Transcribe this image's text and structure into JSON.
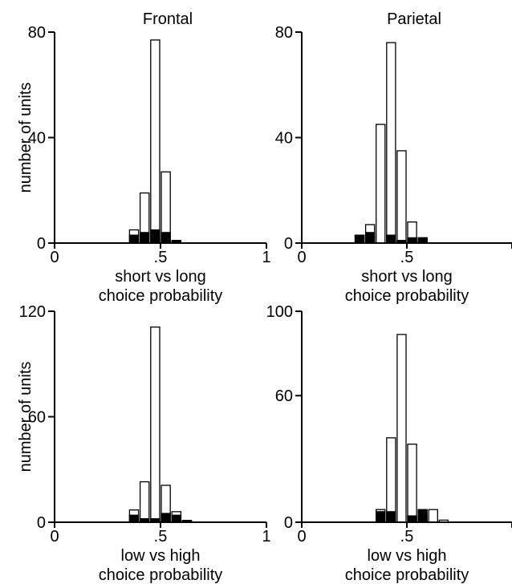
{
  "figure": {
    "panels": [
      {
        "title": "Frontal",
        "ylabel": "number of units",
        "xlabel_line1": "short vs long",
        "xlabel_line2": "choice probability",
        "yticks": [
          "0",
          "40",
          "80"
        ],
        "xticks": [
          "0",
          ".5",
          "1"
        ]
      },
      {
        "title": "Parietal",
        "ylabel": "",
        "xlabel_line1": "short vs long",
        "xlabel_line2": "choice probability",
        "yticks": [
          "0",
          "40",
          "80"
        ],
        "xticks": [
          "0",
          ".5",
          ""
        ]
      },
      {
        "title": "",
        "ylabel": "number of units",
        "xlabel_line1": "low vs high",
        "xlabel_line2": "choice probability",
        "yticks": [
          "0",
          "60",
          "120"
        ],
        "xticks": [
          "0",
          ".5",
          "1"
        ]
      },
      {
        "title": "",
        "ylabel": "",
        "xlabel_line1": "low vs high",
        "xlabel_line2": "choice probability",
        "yticks": [
          "0",
          "60",
          "100"
        ],
        "xticks": [
          "0",
          ".5",
          ""
        ]
      }
    ]
  },
  "chart_data": [
    {
      "type": "bar",
      "title": "Frontal",
      "xlabel": "short vs long choice probability",
      "ylabel": "number of units",
      "xlim": [
        0,
        1
      ],
      "ylim": [
        0,
        80
      ],
      "bin_width": 0.05,
      "series": [
        {
          "name": "",
          "color": "#ffffff",
          "bins": [
            0.35,
            0.4,
            0.45,
            0.5,
            0.55,
            0.6
          ],
          "values": [
            5,
            19,
            77,
            27,
            1,
            0
          ]
        },
        {
          "name": "",
          "color": "#000000",
          "bins": [
            0.35,
            0.4,
            0.45,
            0.5,
            0.55,
            0.6
          ],
          "values": [
            3,
            4,
            5,
            4,
            1,
            0
          ]
        }
      ]
    },
    {
      "type": "bar",
      "title": "Parietal",
      "xlabel": "short vs long choice probability",
      "ylabel": "",
      "xlim": [
        0,
        1
      ],
      "ylim": [
        0,
        80
      ],
      "bin_width": 0.05,
      "series": [
        {
          "name": "",
          "color": "#ffffff",
          "bins": [
            0.25,
            0.3,
            0.35,
            0.4,
            0.45,
            0.5,
            0.55,
            0.6
          ],
          "values": [
            3,
            7,
            45,
            76,
            35,
            8,
            2,
            0
          ]
        },
        {
          "name": "",
          "color": "#000000",
          "bins": [
            0.25,
            0.3,
            0.35,
            0.4,
            0.45,
            0.5,
            0.55,
            0.6
          ],
          "values": [
            3,
            4,
            0,
            3,
            1,
            2,
            2,
            0
          ]
        }
      ]
    },
    {
      "type": "bar",
      "title": "",
      "xlabel": "low vs high choice probability",
      "ylabel": "number of units",
      "xlim": [
        0,
        1
      ],
      "ylim": [
        0,
        120
      ],
      "bin_width": 0.05,
      "series": [
        {
          "name": "",
          "color": "#ffffff",
          "bins": [
            0.35,
            0.4,
            0.45,
            0.5,
            0.55,
            0.6,
            0.65
          ],
          "values": [
            7,
            23,
            111,
            21,
            6,
            1,
            0
          ]
        },
        {
          "name": "",
          "color": "#000000",
          "bins": [
            0.35,
            0.4,
            0.45,
            0.5,
            0.55,
            0.6,
            0.65
          ],
          "values": [
            4,
            2,
            2,
            5,
            4,
            1,
            0
          ]
        }
      ]
    },
    {
      "type": "bar",
      "title": "",
      "xlabel": "low vs high choice probability",
      "ylabel": "",
      "xlim": [
        0,
        1
      ],
      "ylim": [
        0,
        100
      ],
      "bin_width": 0.05,
      "series": [
        {
          "name": "",
          "color": "#ffffff",
          "bins": [
            0.35,
            0.4,
            0.45,
            0.5,
            0.55,
            0.6,
            0.65
          ],
          "values": [
            6,
            40,
            89,
            37,
            3,
            6,
            1
          ]
        },
        {
          "name": "",
          "color": "#000000",
          "bins": [
            0.35,
            0.4,
            0.45,
            0.5,
            0.55,
            0.6,
            0.65
          ],
          "values": [
            5,
            5,
            0,
            3,
            6,
            0,
            0
          ]
        }
      ]
    }
  ]
}
